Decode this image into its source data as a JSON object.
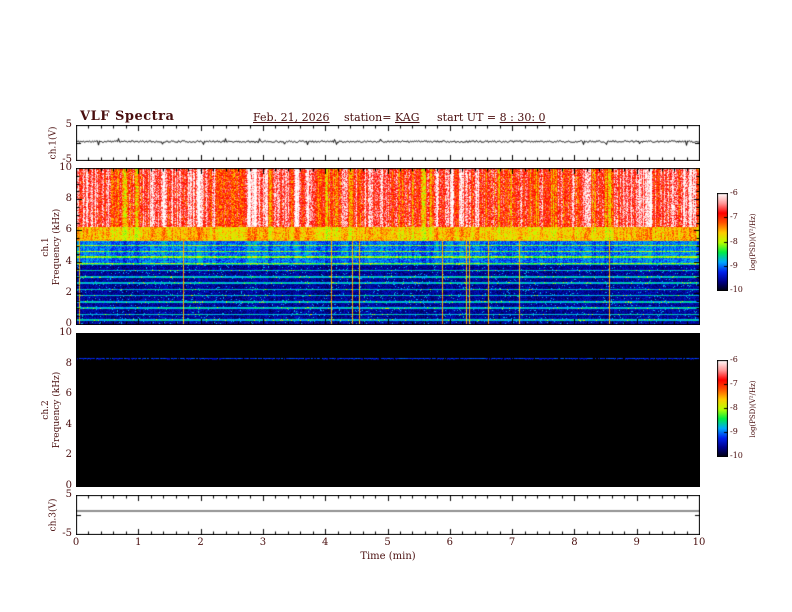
{
  "header": {
    "title": "VLF Spectra",
    "date": "Feb. 21, 2026",
    "station_label": "station=",
    "station_value": "KAG",
    "ut_label": "start UT = ",
    "ut_value": "8 : 30: 0"
  },
  "colors": {
    "text": "#4a0f0f",
    "axis": "#000000",
    "waveform": "#000000",
    "colormap": [
      "#000006",
      "#000088",
      "#0022ee",
      "#00aaff",
      "#00ee44",
      "#bbff00",
      "#ffcc00",
      "#ff5500",
      "#ff0000",
      "#ff9999",
      "#ffffff"
    ]
  },
  "xaxis": {
    "label": "Time (min)",
    "range": [
      0,
      10
    ],
    "major_ticks": [
      0,
      1,
      2,
      3,
      4,
      5,
      6,
      7,
      8,
      9,
      10
    ],
    "minor_step": 0.2
  },
  "chart_data": [
    {
      "type": "line",
      "name": "ch1-waveform",
      "ylabel": "ch.1(V)",
      "ylim": [
        -5,
        5
      ],
      "ytick_labels": [
        5,
        -5
      ],
      "baseline": 0.4,
      "noise_amp": 0.25,
      "spike_rate": 0.03,
      "spike_amp": 1.1,
      "seed": 11
    },
    {
      "type": "heatmap",
      "name": "ch1-spectrogram",
      "ylabel_lines": [
        "ch.1",
        "Frequency (kHz)"
      ],
      "ylim": [
        0,
        10
      ],
      "ymajor": [
        0,
        2,
        4,
        6,
        8,
        10
      ],
      "yminor_step": 0.5,
      "seed": 42,
      "bands": [
        {
          "fmin": 6.3,
          "fmax": 10,
          "psd_base": -6.6,
          "streak_gain": 2.2,
          "jitter": 0.9
        },
        {
          "fmin": 5.4,
          "fmax": 6.3,
          "psd_base": -7.55,
          "streak_gain": 0.8,
          "jitter": 0.6
        },
        {
          "fmin": 3.9,
          "fmax": 5.4,
          "psd_base": -8.95,
          "streak_gain": 0.5,
          "jitter": 0.5
        },
        {
          "fmin": 0,
          "fmax": 3.9,
          "psd_base": -9.55,
          "streak_gain": 0.2,
          "jitter": 0.4
        }
      ],
      "hlines": [
        5.1,
        4.7,
        4.35,
        3.9,
        3.5,
        3.1,
        2.7,
        2.3,
        1.9,
        1.5,
        1.1,
        0.7,
        0.35
      ],
      "hline_boost": 0.85,
      "vline_count": 12,
      "colorbar": {
        "label": "log(PSD)(V²/Hz)",
        "ticks": [
          -6,
          -7,
          -8,
          -9,
          -10
        ],
        "range": [
          -10,
          -6
        ]
      }
    },
    {
      "type": "heatmap",
      "name": "ch2-spectrogram",
      "ylabel_lines": [
        "ch.2",
        "Frequency (kHz)"
      ],
      "ylim": [
        0,
        10
      ],
      "ymajor": [
        0,
        2,
        4,
        6,
        8,
        10
      ],
      "yminor_step": 0.5,
      "seed": 7,
      "background_psd": -10,
      "hlines": [
        8.35
      ],
      "hline_psd": -9.4,
      "colorbar": {
        "label": "log(PSD)(V²/Hz)",
        "ticks": [
          -6,
          -7,
          -8,
          -9,
          -10
        ],
        "range": [
          -10,
          -6
        ]
      }
    },
    {
      "type": "line",
      "name": "ch3-waveform",
      "ylabel": "ch.3(V)",
      "ylim": [
        -5,
        5
      ],
      "ytick_labels": [
        5,
        -5
      ],
      "baseline": 1.0,
      "noise_amp": 0.0,
      "spike_rate": 0,
      "spike_amp": 0,
      "seed": 3
    }
  ]
}
